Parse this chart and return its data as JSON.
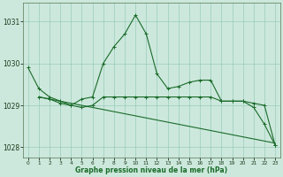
{
  "background_color": "#cce8dc",
  "grid_color": "#99ccbb",
  "line_color": "#1a6b2a",
  "title": "Graphe pression niveau de la mer (hPa)",
  "xlim": [
    -0.5,
    23.5
  ],
  "ylim": [
    1027.75,
    1031.45
  ],
  "yticks": [
    1028,
    1029,
    1030,
    1031
  ],
  "xticks": [
    0,
    1,
    2,
    3,
    4,
    5,
    6,
    7,
    8,
    9,
    10,
    11,
    12,
    13,
    14,
    15,
    16,
    17,
    18,
    19,
    20,
    21,
    22,
    23
  ],
  "series1_x": [
    0,
    1,
    2,
    3,
    4,
    5,
    6,
    7,
    8,
    9,
    10,
    11,
    12,
    13,
    14,
    15,
    16,
    17,
    18,
    19,
    20,
    21,
    22,
    23
  ],
  "series1_y": [
    1029.9,
    1029.4,
    1029.2,
    1029.1,
    1029.0,
    1029.15,
    1029.2,
    1030.0,
    1030.4,
    1030.7,
    1031.15,
    1030.7,
    1029.75,
    1029.4,
    1029.45,
    1029.55,
    1029.6,
    1029.6,
    1029.1,
    1029.1,
    1029.1,
    1028.95,
    1028.55,
    1028.05
  ],
  "series2_x": [
    1,
    2,
    3,
    4,
    5,
    6,
    7,
    8,
    9,
    10,
    11,
    12,
    13,
    14,
    15,
    16,
    17,
    18,
    19,
    20,
    21,
    22,
    23
  ],
  "series2_y": [
    1029.2,
    1029.15,
    1029.05,
    1029.0,
    1028.95,
    1029.0,
    1029.2,
    1029.2,
    1029.2,
    1029.2,
    1029.2,
    1029.2,
    1029.2,
    1029.2,
    1029.2,
    1029.2,
    1029.2,
    1029.1,
    1029.1,
    1029.1,
    1029.05,
    1029.0,
    1028.05
  ],
  "series3_x": [
    1,
    23
  ],
  "series3_y": [
    1029.2,
    1028.1
  ]
}
